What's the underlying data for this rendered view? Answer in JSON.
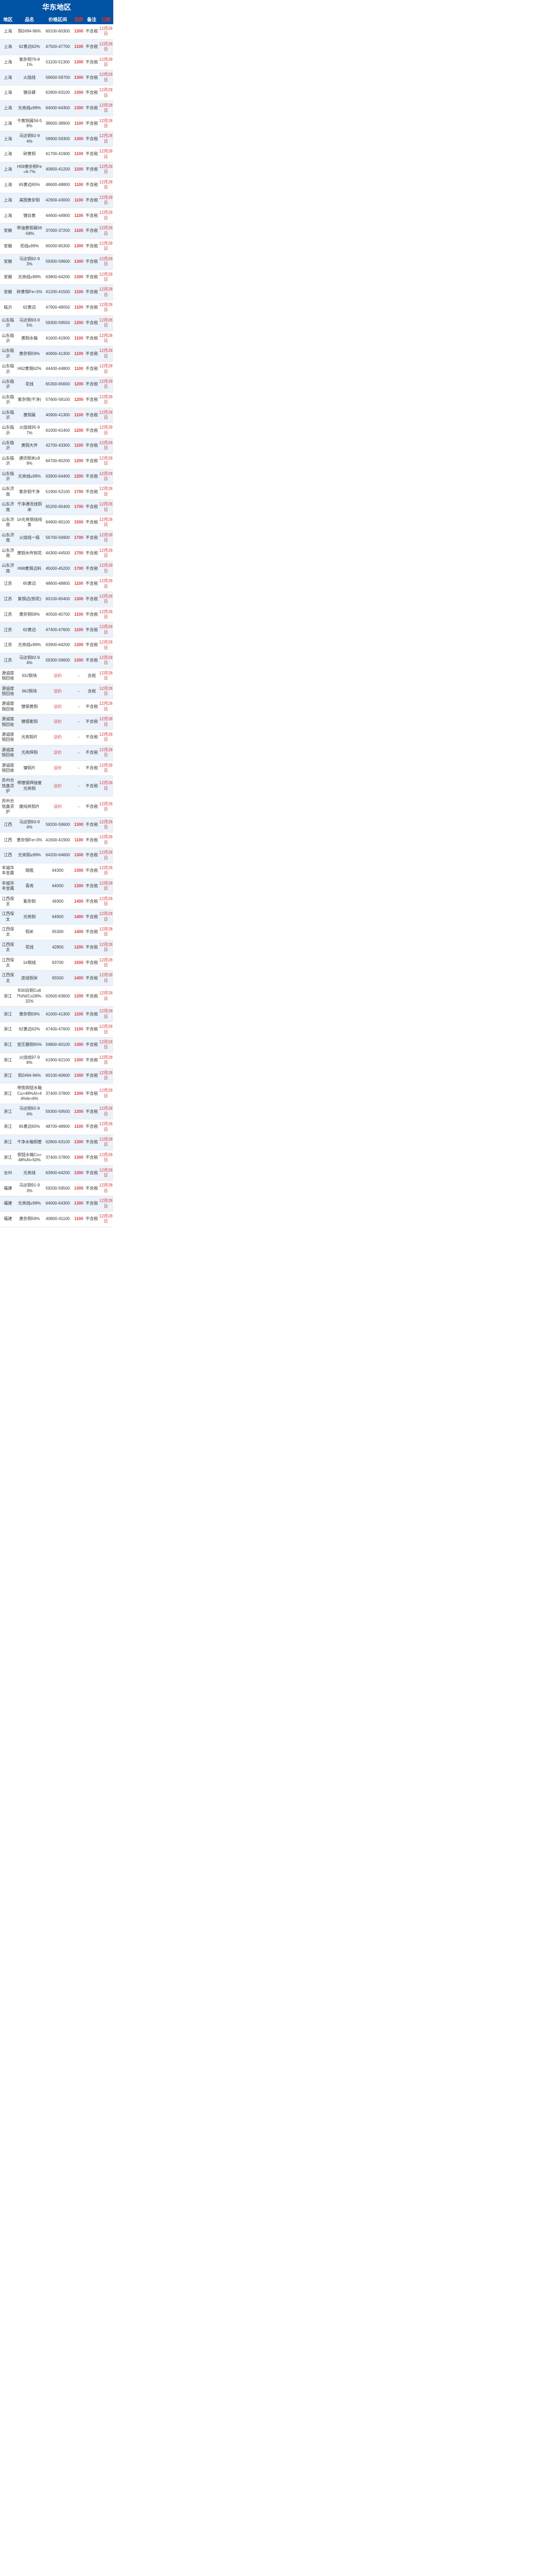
{
  "region_title": "华东地区",
  "headers": [
    "地区",
    "品名",
    "价格区间",
    "涨跌",
    "备注",
    "日期"
  ],
  "note_notax": "不含税",
  "note_tax": "含税",
  "negotiate_text": "议价",
  "dash": "-",
  "rows": [
    {
      "area": "上海",
      "name": "铜2#94-96%",
      "price": "60100-60300",
      "diff": "1300",
      "note": "nt",
      "date": "12月28日",
      "blue": false
    },
    {
      "area": "上海",
      "name": "62黄边62%",
      "price": "47500-47700",
      "diff": "1100",
      "note": "nt",
      "date": "12月28日",
      "blue": true
    },
    {
      "area": "上海",
      "name": "紫杂铜79-81%",
      "price": "51100-51300",
      "diff": "1300",
      "note": "nt",
      "date": "12月28日",
      "blue": false
    },
    {
      "area": "上海",
      "name": "火烧线",
      "price": "59600-59700",
      "diff": "1300",
      "note": "nt",
      "date": "12月28日",
      "blue": true
    },
    {
      "area": "上海",
      "name": "镀白磷",
      "price": "62800-63100",
      "diff": "1300",
      "note": "nt",
      "date": "12月28日",
      "blue": false
    },
    {
      "area": "上海",
      "name": "光亮线≥99%",
      "price": "64000-64300",
      "diff": "1300",
      "note": "nt",
      "date": "12月28日",
      "blue": true
    },
    {
      "area": "上海",
      "name": "干黄铜屑56-58%",
      "price": "38600-38900",
      "diff": "1100",
      "note": "nt",
      "date": "12月28日",
      "blue": false
    },
    {
      "area": "上海",
      "name": "马达铜92-94%",
      "price": "58900-59300",
      "diff": "1300",
      "note": "nt",
      "date": "12月28日",
      "blue": true
    },
    {
      "area": "上海",
      "name": "碎黄铜",
      "price": "41700-41900",
      "diff": "1100",
      "note": "nt",
      "date": "12月28日",
      "blue": false
    },
    {
      "area": "上海",
      "name": "H59黄杂铜Fe=6-7%",
      "price": "40800-41200",
      "diff": "1100",
      "note": "nt",
      "date": "12月28日",
      "blue": true
    },
    {
      "area": "上海",
      "name": "65黄边65%",
      "price": "48600-48800",
      "diff": "1100",
      "note": "nt",
      "date": "12月28日",
      "blue": false
    },
    {
      "area": "上海",
      "name": "美国黄杂铜",
      "price": "42900-43000",
      "diff": "1100",
      "note": "nt",
      "date": "12月28日",
      "blue": true
    },
    {
      "area": "上海",
      "name": "镀白黄",
      "price": "44600-44900",
      "diff": "1100",
      "note": "nt",
      "date": "12月28日",
      "blue": false
    },
    {
      "area": "安徽",
      "name": "带油黄铜屑56-58%",
      "price": "37000-37200",
      "diff": "1100",
      "note": "nt",
      "date": "12月28日",
      "blue": true
    },
    {
      "area": "安徽",
      "name": "花线≥99%",
      "price": "65000-65300",
      "diff": "1300",
      "note": "nt",
      "date": "12月28日",
      "blue": false
    },
    {
      "area": "安徽",
      "name": "马达铜92-93%",
      "price": "59300-59600",
      "diff": "1300",
      "note": "nt",
      "date": "12月28日",
      "blue": true
    },
    {
      "area": "安徽",
      "name": "光亮线≥99%",
      "price": "63800-64200",
      "diff": "1300",
      "note": "nt",
      "date": "12月28日",
      "blue": false
    },
    {
      "area": "安徽",
      "name": "碎黄铜Fe<3%",
      "price": "41200-41500",
      "diff": "1100",
      "note": "nt",
      "date": "12月28日",
      "blue": true
    },
    {
      "area": "临沂",
      "name": "62黄边",
      "price": "47900-48050",
      "diff": "1100",
      "note": "nt",
      "date": "12月28日",
      "blue": false
    },
    {
      "area": "山东临沂",
      "name": "马达铜93-95%",
      "price": "59300-59550",
      "diff": "1200",
      "note": "nt",
      "date": "12月28日",
      "blue": true
    },
    {
      "area": "山东临沂",
      "name": "黄铜水箱",
      "price": "41600-41900",
      "diff": "1100",
      "note": "nt",
      "date": "12月28日",
      "blue": false
    },
    {
      "area": "山东临沂",
      "name": "黄杂铜59%",
      "price": "40900-41300",
      "diff": "1100",
      "note": "nt",
      "date": "12月28日",
      "blue": true
    },
    {
      "area": "山东临沂",
      "name": "H62黄铜62%",
      "price": "44400-44800",
      "diff": "1100",
      "note": "nt",
      "date": "12月28日",
      "blue": false
    },
    {
      "area": "山东临沂",
      "name": "花线",
      "price": "65300-65600",
      "diff": "1200",
      "note": "nt",
      "date": "12月28日",
      "blue": true
    },
    {
      "area": "山东临沂",
      "name": "紫杂铜(干净)",
      "price": "57600-58100",
      "diff": "1200",
      "note": "nt",
      "date": "12月28日",
      "blue": false
    },
    {
      "area": "山东临沂",
      "name": "黄铜屑",
      "price": "40900-41300",
      "diff": "1100",
      "note": "nt",
      "date": "12月28日",
      "blue": true
    },
    {
      "area": "山东临沂",
      "name": "火烧线95-97%",
      "price": "61000-61400",
      "diff": "1200",
      "note": "nt",
      "date": "12月28日",
      "blue": false
    },
    {
      "area": "山东临沂",
      "name": "黄铜大件",
      "price": "42700-43300",
      "diff": "1100",
      "note": "nt",
      "date": "12月28日",
      "blue": true
    },
    {
      "area": "山东临沂",
      "name": "通讯铜米≥99%",
      "price": "64700-65200",
      "diff": "1200",
      "note": "nt",
      "date": "12月28日",
      "blue": false
    },
    {
      "area": "山东临沂",
      "name": "光亮线≥99%",
      "price": "63900-64400",
      "diff": "1200",
      "note": "nt",
      "date": "12月28日",
      "blue": true
    },
    {
      "area": "山东济南",
      "name": "紫杂铜干净",
      "price": "51900-52100",
      "diff": "1700",
      "note": "nt",
      "date": "12月28日",
      "blue": false
    },
    {
      "area": "山东济南",
      "name": "干净通讯线铜米",
      "price": "65200-65400",
      "diff": "1700",
      "note": "nt",
      "date": "12月28日",
      "blue": true
    },
    {
      "area": "山东济南",
      "name": "1#光亮铜线纯条",
      "price": "64900-65100",
      "diff": "1500",
      "note": "nt",
      "date": "12月28日",
      "blue": false
    },
    {
      "area": "山东济南",
      "name": "火烧线一级",
      "price": "56700-56900",
      "diff": "1700",
      "note": "nt",
      "date": "12月28日",
      "blue": true
    },
    {
      "area": "山东济南",
      "name": "黄铜水件刨花",
      "price": "44300-44500",
      "diff": "1700",
      "note": "nt",
      "date": "12月28日",
      "blue": false
    },
    {
      "area": "山东济南",
      "name": "H68黄铜边料",
      "price": "45000-45200",
      "diff": "1700",
      "note": "nt",
      "date": "12月28日",
      "blue": true
    },
    {
      "area": "江苏",
      "name": "65黄边",
      "price": "48600-48800",
      "diff": "1100",
      "note": "nt",
      "date": "12月28日",
      "blue": false
    },
    {
      "area": "江苏",
      "name": "紫铜边(刨花)",
      "price": "60100-60400",
      "diff": "1300",
      "note": "nt",
      "date": "12月28日",
      "blue": true
    },
    {
      "area": "江苏",
      "name": "黄杂铜58%",
      "price": "40500-40700",
      "diff": "1100",
      "note": "nt",
      "date": "12月28日",
      "blue": false
    },
    {
      "area": "江苏",
      "name": "62黄边",
      "price": "47400-47600",
      "diff": "1100",
      "note": "nt",
      "date": "12月28日",
      "blue": true
    },
    {
      "area": "江苏",
      "name": "光亮线≥99%",
      "price": "63900-64200",
      "diff": "1300",
      "note": "nt",
      "date": "12月28日",
      "blue": false
    },
    {
      "area": "江苏",
      "name": "马达铜92-94%",
      "price": "59300-59600",
      "diff": "1300",
      "note": "nt",
      "date": "12月28日",
      "blue": true
    },
    {
      "area": "源诚度铜回收",
      "name": "63J铜块",
      "price": "neg",
      "diff": "-",
      "note": "tax",
      "date": "12月28日",
      "blue": false
    },
    {
      "area": "源诚度铜回收",
      "name": "66J铜块",
      "price": "neg",
      "diff": "-",
      "note": "tax",
      "date": "12月28日",
      "blue": true
    },
    {
      "area": "源诚度铜回收",
      "name": "镀锡黄铜",
      "price": "neg",
      "diff": "-",
      "note": "nt",
      "date": "12月28日",
      "blue": false
    },
    {
      "area": "源诚度铜回收",
      "name": "镀锡紫铜",
      "price": "neg",
      "diff": "-",
      "note": "nt",
      "date": "12月28日",
      "blue": true
    },
    {
      "area": "源诚度铜回收",
      "name": "光亮铜片",
      "price": "neg",
      "diff": "-",
      "note": "nt",
      "date": "12月28日",
      "blue": false
    },
    {
      "area": "源诚度铜回收",
      "name": "光亮焊铜",
      "price": "neg",
      "diff": "-",
      "note": "nt",
      "date": "12月28日",
      "blue": true
    },
    {
      "area": "源诚度铜回收",
      "name": "镍铜片",
      "price": "neg",
      "diff": "-",
      "note": "nt",
      "date": "12月28日",
      "blue": false
    },
    {
      "area": "苏州合铭鑫贷炉",
      "name": "带镀锡焊接废光亮铜",
      "price": "neg",
      "diff": "-",
      "note": "nt",
      "date": "12月28日",
      "blue": true
    },
    {
      "area": "苏州合铭鑫贷炉",
      "name": "废纯亮铜片",
      "price": "neg",
      "diff": "-",
      "note": "nt",
      "date": "12月28日",
      "blue": false
    },
    {
      "area": "江西",
      "name": "马达铜93-94%",
      "price": "59200-59600",
      "diff": "1300",
      "note": "nt",
      "date": "12月28日",
      "blue": true
    },
    {
      "area": "江西",
      "name": "黄杂铜Fe<3%",
      "price": "41600-41900",
      "diff": "1100",
      "note": "nt",
      "date": "12月28日",
      "blue": false
    },
    {
      "area": "江西",
      "name": "光亮铜≥99%",
      "price": "64200-64600",
      "diff": "1300",
      "note": "nt",
      "date": "12月28日",
      "blue": true
    },
    {
      "area": "丰城华丰金属",
      "name": "熔粗",
      "price": "64300",
      "diff": "1300",
      "note": "nt",
      "date": "12月28日",
      "blue": false
    },
    {
      "area": "丰城华丰金属",
      "name": "青亮",
      "price": "64000",
      "diff": "1300",
      "note": "nt",
      "date": "12月28日",
      "blue": true
    },
    {
      "area": "江西保太",
      "name": "紫杂铜",
      "price": "49300",
      "diff": "1400",
      "note": "nt",
      "date": "12月28日",
      "blue": false
    },
    {
      "area": "江西保太",
      "name": "光亮铜",
      "price": "64900",
      "diff": "1400",
      "note": "nt",
      "date": "12月28日",
      "blue": true
    },
    {
      "area": "江西保太",
      "name": "铜米",
      "price": "65300",
      "diff": "1400",
      "note": "nt",
      "date": "12月28日",
      "blue": false
    },
    {
      "area": "江西保太",
      "name": "花线",
      "price": "42800",
      "diff": "1200",
      "note": "nt",
      "date": "12月28日",
      "blue": true
    },
    {
      "area": "江西保太",
      "name": "1#铜线",
      "price": "63700",
      "diff": "1500",
      "note": "nt",
      "date": "12月28日",
      "blue": false
    },
    {
      "area": "江西保太",
      "name": "皮线铜米",
      "price": "65500",
      "diff": "1400",
      "note": "nt",
      "date": "12月28日",
      "blue": true
    },
    {
      "area": "浙江",
      "name": "B30白铜Cu67%Ni/Co28%-32%",
      "price": "62600-63600",
      "diff": "1200",
      "note": "nt",
      "date": "12月28日",
      "blue": false
    },
    {
      "area": "浙江",
      "name": "黄杂铜59%",
      "price": "41000-41300",
      "diff": "1100",
      "note": "nt",
      "date": "12月28日",
      "blue": true
    },
    {
      "area": "浙江",
      "name": "62黄边62%",
      "price": "47400-47600",
      "diff": "1100",
      "note": "nt",
      "date": "12月28日",
      "blue": false
    },
    {
      "area": "浙江",
      "name": "变压器铜95%",
      "price": "59800-60100",
      "diff": "1300",
      "note": "nt",
      "date": "12月28日",
      "blue": true
    },
    {
      "area": "浙江",
      "name": "火烧线97-98%",
      "price": "61900-62100",
      "diff": "1300",
      "note": "nt",
      "date": "12月28日",
      "blue": false
    },
    {
      "area": "浙江",
      "name": "铜2#94-96%",
      "price": "60100-60600",
      "diff": "1300",
      "note": "nt",
      "date": "12月28日",
      "blue": true
    },
    {
      "area": "浙江",
      "name": "带铁铜钮水箱Cu=48%Al=44%fe=6%",
      "price": "37400-37800",
      "diff": "1300",
      "note": "nt",
      "date": "12月28日",
      "blue": false
    },
    {
      "area": "浙江",
      "name": "马达铜92-94%",
      "price": "59300-59500",
      "diff": "1300",
      "note": "nt",
      "date": "12月28日",
      "blue": true
    },
    {
      "area": "浙江",
      "name": "65黄边65%",
      "price": "48700-48900",
      "diff": "1100",
      "note": "nt",
      "date": "12月28日",
      "blue": false
    },
    {
      "area": "浙江",
      "name": "干净水箱铜管",
      "price": "62800-63100",
      "diff": "1300",
      "note": "nt",
      "date": "12月28日",
      "blue": true
    },
    {
      "area": "浙江",
      "name": "铜钮水箱Cu=48%Al=50%",
      "price": "37400-37800",
      "diff": "1300",
      "note": "nt",
      "date": "12月28日",
      "blue": false
    },
    {
      "area": "台州",
      "name": "光亮线",
      "price": "63900-64200",
      "diff": "1300",
      "note": "nt",
      "date": "12月28日",
      "blue": true
    },
    {
      "area": "福建",
      "name": "马达铜91-93%",
      "price": "59200-59500",
      "diff": "1300",
      "note": "nt",
      "date": "12月28日",
      "blue": false
    },
    {
      "area": "福建",
      "name": "光亮线≥99%",
      "price": "64000-64300",
      "diff": "1300",
      "note": "nt",
      "date": "12月28日",
      "blue": true
    },
    {
      "area": "福建",
      "name": "黄杂铜59%",
      "price": "40800-41100",
      "diff": "1100",
      "note": "nt",
      "date": "12月28日",
      "blue": false
    }
  ]
}
